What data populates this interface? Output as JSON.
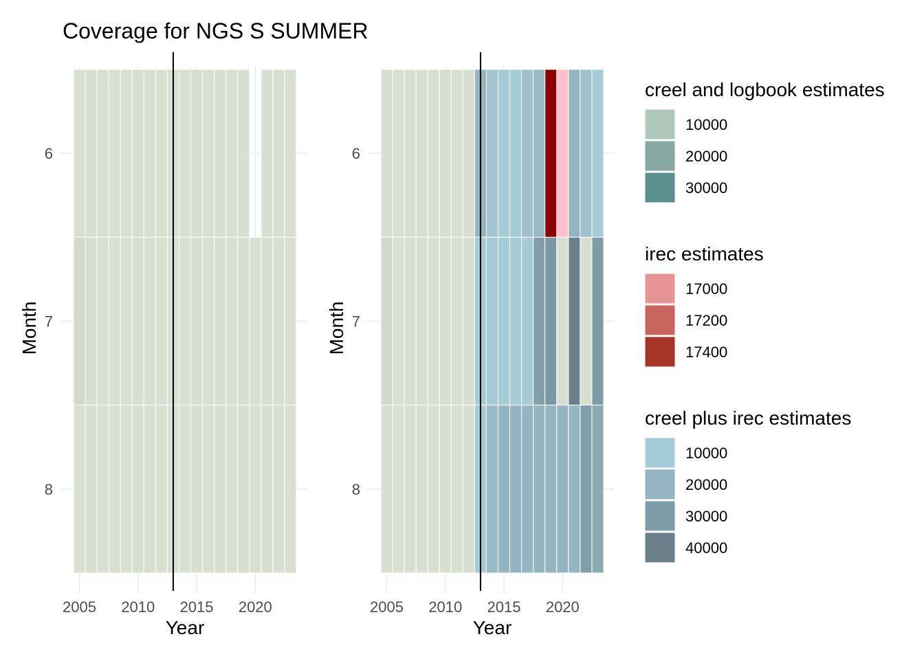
{
  "title": "Coverage for NGS S SUMMER",
  "colors": {
    "base_tile": "#d7e0d0",
    "base_tile_dark": "#cfdac8",
    "grid": "#ebebeb",
    "divider": "#000000"
  },
  "chart_data": [
    {
      "type": "heatmap",
      "panel": "left",
      "xlabel": "Year",
      "ylabel": "Month",
      "x_ticks": [
        2005,
        2010,
        2015,
        2020
      ],
      "y_ticks": [
        6,
        7,
        8
      ],
      "xlim": [
        2004.5,
        2023.5
      ],
      "ylim": [
        5.5,
        8.5
      ],
      "vline": 2013,
      "years": [
        2005,
        2006,
        2007,
        2008,
        2009,
        2010,
        2011,
        2012,
        2013,
        2014,
        2015,
        2016,
        2017,
        2018,
        2019,
        2020,
        2021,
        2022,
        2023
      ],
      "months": [
        6,
        7,
        8
      ],
      "cells": [
        {
          "month": 6,
          "years": [
            2005,
            2006,
            2007,
            2008,
            2009,
            2010,
            2011,
            2012,
            2013,
            2014,
            2015,
            2016,
            2017,
            2018,
            2019,
            2021,
            2022,
            2023
          ],
          "fill": "#d7e0d0"
        },
        {
          "month": 7,
          "years": [
            2006,
            2007,
            2008,
            2009,
            2010,
            2011,
            2012,
            2013,
            2014,
            2015,
            2016,
            2017,
            2018,
            2019,
            2020,
            2021,
            2022,
            2023
          ],
          "fill": "#d7e0d0"
        },
        {
          "month": 7,
          "years": [
            2005
          ],
          "fill": "#cfdac8"
        },
        {
          "month": 8,
          "years": [
            2005,
            2006,
            2007,
            2008,
            2009,
            2010,
            2011,
            2012,
            2013,
            2014,
            2015,
            2016,
            2017,
            2018,
            2019,
            2020,
            2021,
            2022,
            2023
          ],
          "fill": "#d7e0d0"
        }
      ]
    },
    {
      "type": "heatmap",
      "panel": "right",
      "xlabel": "Year",
      "ylabel": "Month",
      "x_ticks": [
        2005,
        2010,
        2015,
        2020
      ],
      "y_ticks": [
        6,
        7,
        8
      ],
      "xlim": [
        2004.5,
        2023.5
      ],
      "ylim": [
        5.5,
        8.5
      ],
      "vline": 2013,
      "years": [
        2005,
        2006,
        2007,
        2008,
        2009,
        2010,
        2011,
        2012,
        2013,
        2014,
        2015,
        2016,
        2017,
        2018,
        2019,
        2020,
        2021,
        2022,
        2023
      ],
      "months": [
        6,
        7,
        8
      ],
      "rows": [
        {
          "month": 6,
          "fills": [
            "#d7e0d0",
            "#d7e0d0",
            "#d7e0d0",
            "#d7e0d0",
            "#d7e0d0",
            "#d7e0d0",
            "#d7e0d0",
            "#d7e0d0",
            "#93b4c0",
            "#a1c5d1",
            "#a5cbd7",
            "#a5cbd7",
            "#9ec1cd",
            "#97bac6",
            "#8b0000",
            "#ffc0cb",
            "#93b4c0",
            "#9ec1cd",
            "#a5cbd7"
          ]
        },
        {
          "month": 7,
          "fills": [
            "#cfdac8",
            "#d7e0d0",
            "#d7e0d0",
            "#d7e0d0",
            "#d7e0d0",
            "#d7e0d0",
            "#d7e0d0",
            "#d7e0d0",
            "#a5cbd7",
            "#a5cbd7",
            "#a5cbd7",
            "#a5cbd7",
            "#a5cbd7",
            "#829fa9",
            "#7b97a1",
            "#d7e0d0",
            "#6b7f8a",
            "#d7e0d0",
            "#7e9ca6"
          ]
        },
        {
          "month": 8,
          "fills": [
            "#d7e0d0",
            "#d7e0d0",
            "#d7e0d0",
            "#d7e0d0",
            "#d7e0d0",
            "#d7e0d0",
            "#d7e0d0",
            "#d7e0d0",
            "#a5cbd7",
            "#98bac6",
            "#93b4c0",
            "#93b4c0",
            "#93b4c0",
            "#93b4c0",
            "#93b4c0",
            "#93b4c0",
            "#93b4c0",
            "#829fa9",
            "#8aaab4"
          ]
        }
      ]
    }
  ],
  "legends": [
    {
      "title": "creel and logbook estimates",
      "items": [
        {
          "label": "10000",
          "color": "#afc6ba"
        },
        {
          "label": "20000",
          "color": "#86aaa2"
        },
        {
          "label": "30000",
          "color": "#5b918d"
        }
      ]
    },
    {
      "title": "irec estimates",
      "items": [
        {
          "label": "17000",
          "color": "#e69595"
        },
        {
          "label": "17200",
          "color": "#c9655e"
        },
        {
          "label": "17400",
          "color": "#a83429"
        }
      ]
    },
    {
      "title": "creel plus irec estimates",
      "items": [
        {
          "label": "10000",
          "color": "#a5cbd7"
        },
        {
          "label": "20000",
          "color": "#93b4c0"
        },
        {
          "label": "30000",
          "color": "#7e9ca6"
        },
        {
          "label": "40000",
          "color": "#6b7f8a"
        }
      ]
    }
  ]
}
